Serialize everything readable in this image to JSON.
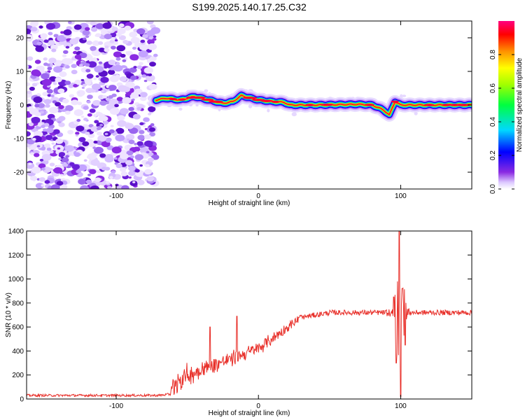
{
  "title": "S199.2025.140.17.25.C32",
  "colors": {
    "series": "#e8302a",
    "spectral_low": "#8a2be2",
    "frame": "#000000"
  },
  "chart_data": [
    {
      "type": "heatmap",
      "name": "spectrogram",
      "xlabel": "Height of straight line (km)",
      "ylabel": "Frequency (Hz)",
      "xlim": [
        -163,
        150
      ],
      "ylim": [
        -25,
        25
      ],
      "xticks": [
        -100,
        0,
        100
      ],
      "yticks": [
        -20,
        -10,
        0,
        10,
        20
      ],
      "noise_region_end_km": -72,
      "ridge": [
        {
          "x": -72,
          "f": 1.5
        },
        {
          "x": -65,
          "f": 2.0
        },
        {
          "x": -55,
          "f": 1.5
        },
        {
          "x": -45,
          "f": 2.5
        },
        {
          "x": -35,
          "f": 1.5
        },
        {
          "x": -25,
          "f": 0.5
        },
        {
          "x": -18,
          "f": 1.0
        },
        {
          "x": -12,
          "f": 2.8
        },
        {
          "x": -5,
          "f": 2.0
        },
        {
          "x": 0,
          "f": 1.5
        },
        {
          "x": 10,
          "f": 1.0
        },
        {
          "x": 18,
          "f": 0.8
        },
        {
          "x": 22,
          "f": 0.0
        },
        {
          "x": 40,
          "f": 0.0
        },
        {
          "x": 70,
          "f": 0.2
        },
        {
          "x": 80,
          "f": 0.0
        },
        {
          "x": 88,
          "f": -1.5
        },
        {
          "x": 92,
          "f": -3.0
        },
        {
          "x": 96,
          "f": 1.0
        },
        {
          "x": 100,
          "f": 0.0
        },
        {
          "x": 150,
          "f": 0.0
        }
      ],
      "colorbar": {
        "label": "Normalized spectral amplitude",
        "range": [
          0,
          1
        ],
        "ticks": [
          "0.0",
          "0.2",
          "0.4",
          "0.6",
          "0.8"
        ]
      }
    },
    {
      "type": "line",
      "name": "snr",
      "xlabel": "Height of straight line (km)",
      "ylabel": "SNR (10 * v/v)",
      "xlim": [
        -163,
        150
      ],
      "ylim": [
        0,
        1400
      ],
      "xticks": [
        -100,
        0,
        100
      ],
      "yticks": [
        0,
        200,
        400,
        600,
        800,
        1000,
        1200,
        1400
      ],
      "trend": [
        {
          "x": -163,
          "y": 30
        },
        {
          "x": -70,
          "y": 30
        },
        {
          "x": -62,
          "y": 40
        },
        {
          "x": -58,
          "y": 150
        },
        {
          "x": -40,
          "y": 250
        },
        {
          "x": -20,
          "y": 330
        },
        {
          "x": 0,
          "y": 420
        },
        {
          "x": 15,
          "y": 550
        },
        {
          "x": 30,
          "y": 680
        },
        {
          "x": 50,
          "y": 720
        },
        {
          "x": 150,
          "y": 720
        }
      ],
      "spikes": [
        {
          "x": -34,
          "y": 600
        },
        {
          "x": -15,
          "y": 690
        },
        {
          "x": 95,
          "y": 850
        },
        {
          "x": 97,
          "y": 300
        },
        {
          "x": 99,
          "y": 1400
        },
        {
          "x": 100,
          "y": 20
        },
        {
          "x": 101,
          "y": 920
        },
        {
          "x": 103,
          "y": 450
        }
      ]
    }
  ]
}
